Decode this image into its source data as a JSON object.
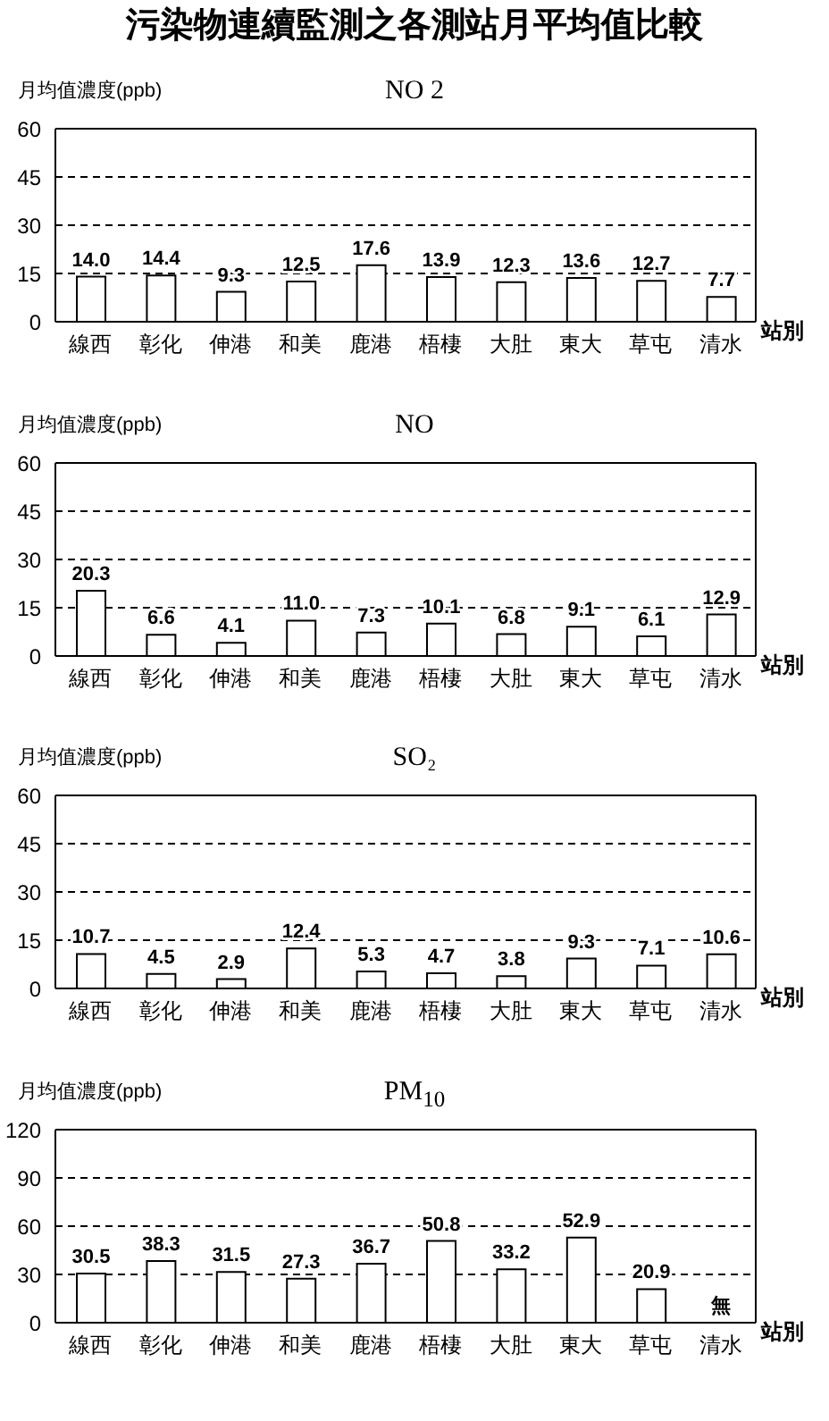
{
  "chart_data": [
    {
      "type": "bar",
      "title": "污染物連續監測之各測站月平均值比較",
      "subtitle": "NO 2",
      "ylabel": "月均值濃度(ppb)",
      "xlabel": "站別",
      "categories": [
        "線西",
        "彰化",
        "伸港",
        "和美",
        "鹿港",
        "梧棲",
        "大肚",
        "東大",
        "草屯",
        "清水"
      ],
      "values": [
        14.0,
        14.4,
        9.3,
        12.5,
        17.6,
        13.9,
        12.3,
        13.6,
        12.7,
        7.7
      ],
      "value_labels": [
        "14.0",
        "14.4",
        "9.3",
        "12.5",
        "17.6",
        "13.9",
        "12.3",
        "13.6",
        "12.7",
        "7.7"
      ],
      "color": "#ffffff",
      "ylim": [
        0,
        60
      ],
      "yticks": [
        0,
        15,
        30,
        45,
        60
      ],
      "grid": "y"
    },
    {
      "type": "bar",
      "title": "NO",
      "ylabel": "月均值濃度(ppb)",
      "xlabel": "站別",
      "categories": [
        "線西",
        "彰化",
        "伸港",
        "和美",
        "鹿港",
        "梧棲",
        "大肚",
        "東大",
        "草屯",
        "清水"
      ],
      "values": [
        20.3,
        6.6,
        4.1,
        11.0,
        7.3,
        10.1,
        6.8,
        9.1,
        6.1,
        12.9
      ],
      "value_labels": [
        "20.3",
        "6.6",
        "4.1",
        "11.0",
        "7.3",
        "10.1",
        "6.8",
        "9.1",
        "6.1",
        "12.9"
      ],
      "color": "#ffffff",
      "ylim": [
        0,
        60
      ],
      "yticks": [
        0,
        15,
        30,
        45,
        60
      ],
      "grid": "y"
    },
    {
      "type": "bar",
      "title": "SO₂",
      "ylabel": "月均值濃度(ppb)",
      "xlabel": "站別",
      "categories": [
        "線西",
        "彰化",
        "伸港",
        "和美",
        "鹿港",
        "梧棲",
        "大肚",
        "東大",
        "草屯",
        "清水"
      ],
      "values": [
        10.7,
        4.5,
        2.9,
        12.4,
        5.3,
        4.7,
        3.8,
        9.3,
        7.1,
        10.6
      ],
      "value_labels": [
        "10.7",
        "4.5",
        "2.9",
        "12.4",
        "5.3",
        "4.7",
        "3.8",
        "9.3",
        "7.1",
        "10.6"
      ],
      "color": "#ffffff",
      "ylim": [
        0,
        60
      ],
      "yticks": [
        0,
        15,
        30,
        45,
        60
      ],
      "grid": "y"
    },
    {
      "type": "bar",
      "title": "PM$_{10}$",
      "ylabel": "月均值濃度(ppb)",
      "xlabel": "站別",
      "categories": [
        "線西",
        "彰化",
        "伸港",
        "和美",
        "鹿港",
        "梧棲",
        "大肚",
        "東大",
        "草屯",
        "清水"
      ],
      "values": [
        30.5,
        38.3,
        31.5,
        27.3,
        36.7,
        50.8,
        33.2,
        52.9,
        20.9,
        null
      ],
      "value_labels": [
        "30.5",
        "38.3",
        "31.5",
        "27.3",
        "36.7",
        "50.8",
        "33.2",
        "52.9",
        "20.9",
        "無"
      ],
      "color": "#ffffff",
      "ylim": [
        0,
        120
      ],
      "yticks": [
        0,
        30,
        60,
        90,
        120
      ],
      "grid": "y"
    }
  ]
}
